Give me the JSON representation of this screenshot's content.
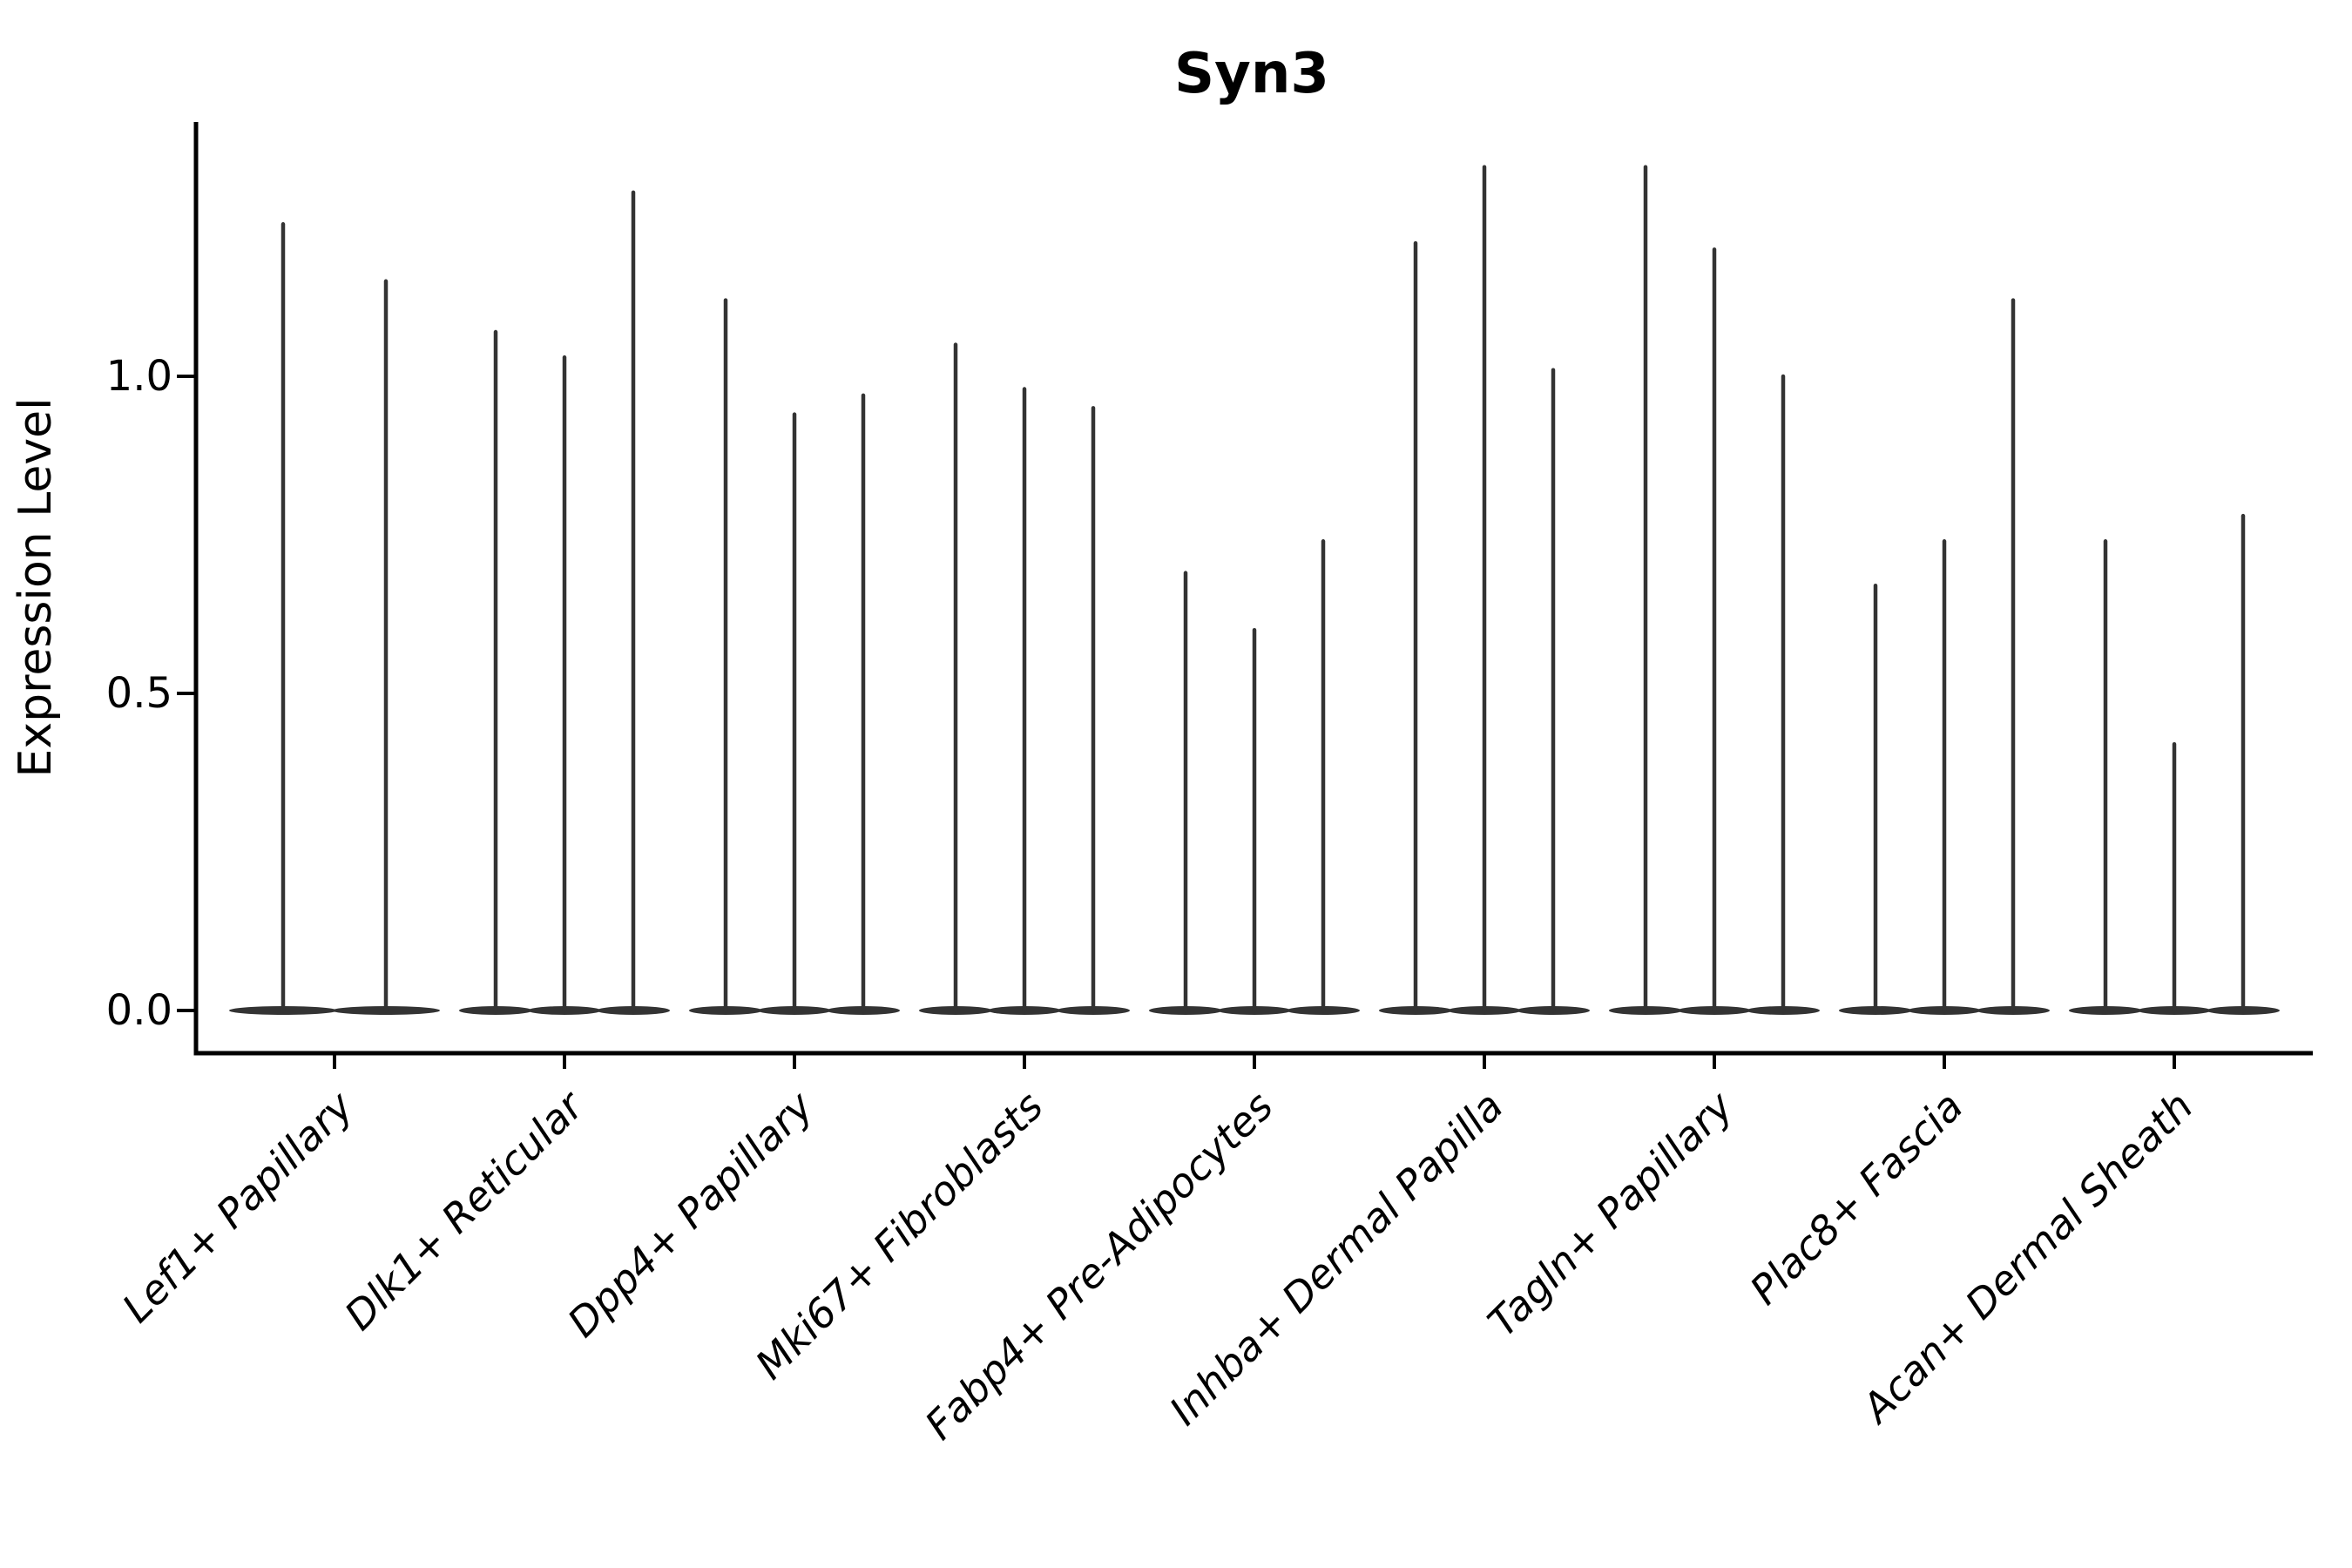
{
  "figure": {
    "title": "Syn3",
    "background_color": "#ffffff"
  },
  "chart_data": {
    "type": "violin",
    "title": "Syn3",
    "ylabel": "Expression Level",
    "xlabel": "",
    "ylim": [
      -0.07,
      1.4
    ],
    "yticks": [
      0.0,
      0.5,
      1.0
    ],
    "ytick_labels": [
      "0.0",
      "0.5",
      "1.0"
    ],
    "grid": false,
    "legend": null,
    "violin_color": "#333333",
    "axis_color": "#000000",
    "title_color": "#000000",
    "categories": [
      "Lef1+ Papillary",
      "Dlk1+ Reticular",
      "Dpp4+ Papillary",
      "Mki67+ Fibroblasts",
      "Fabp4+ Pre-Adipocytes",
      "Inhba+ Dermal Papilla",
      "Tagln+ Papillary",
      "Plac8+ Fascia",
      "Acan+ Dermal Sheath"
    ],
    "groups": [
      {
        "category": "Lef1+ Papillary",
        "violins_max_expression": [
          1.24,
          1.15
        ]
      },
      {
        "category": "Dlk1+ Reticular",
        "violins_max_expression": [
          1.07,
          1.03,
          1.29
        ]
      },
      {
        "category": "Dpp4+ Papillary",
        "violins_max_expression": [
          1.12,
          0.94,
          0.97
        ]
      },
      {
        "category": "Mki67+ Fibroblasts",
        "violins_max_expression": [
          1.05,
          0.98,
          0.95
        ]
      },
      {
        "category": "Fabp4+ Pre-Adipocytes",
        "violins_max_expression": [
          0.69,
          0.6,
          0.74
        ]
      },
      {
        "category": "Inhba+ Dermal Papilla",
        "violins_max_expression": [
          1.21,
          1.33,
          1.01
        ]
      },
      {
        "category": "Tagln+ Papillary",
        "violins_max_expression": [
          1.33,
          1.2,
          1.0
        ]
      },
      {
        "category": "Plac8+ Fascia",
        "violins_max_expression": [
          0.67,
          0.74,
          1.12
        ]
      },
      {
        "category": "Acan+ Dermal Sheath",
        "violins_max_expression": [
          0.74,
          0.42,
          0.78
        ]
      }
    ]
  }
}
